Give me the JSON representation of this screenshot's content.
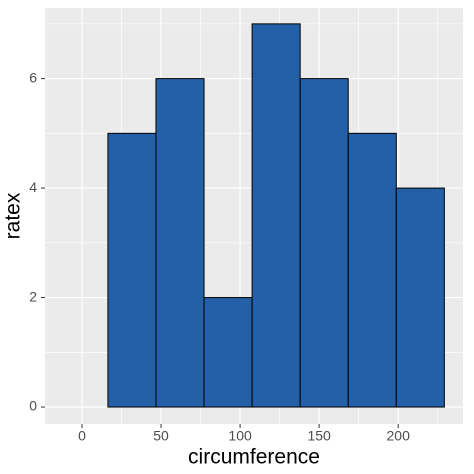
{
  "chart_data": {
    "type": "histogram",
    "x_label": "circumference",
    "y_label": "ratex",
    "bins": [
      -14,
      16.4,
      46.8,
      77.2,
      107.6,
      138,
      168.4,
      198.8,
      229.2
    ],
    "values": [
      0,
      5,
      6,
      2,
      7,
      6,
      5,
      4
    ],
    "color": "#2460a7",
    "edge_color": "#000000",
    "xlim": [
      -23.4,
      241
    ],
    "ylim": [
      -0.31,
      7.29
    ],
    "xticks": [
      0,
      50,
      100,
      150,
      200
    ],
    "yticks": [
      0,
      2,
      4,
      6
    ],
    "x_minor_ticks": [
      -25,
      25,
      75,
      125,
      175,
      225
    ],
    "y_minor_ticks": [
      1,
      3,
      5,
      7
    ],
    "grid": true
  }
}
